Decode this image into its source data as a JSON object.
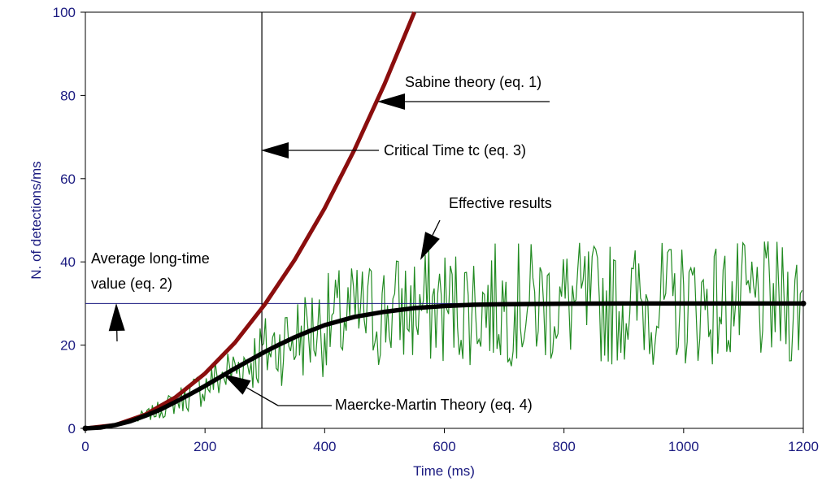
{
  "chart_data": {
    "type": "line",
    "title": "",
    "xlabel": "Time (ms)",
    "ylabel": "N. of detections/ms",
    "xlim": [
      0,
      1200
    ],
    "ylim": [
      0,
      100
    ],
    "xticks": [
      0,
      200,
      400,
      600,
      800,
      1000,
      1200
    ],
    "yticks": [
      0,
      20,
      40,
      60,
      80,
      100
    ],
    "grid": false,
    "legend": "none",
    "series": [
      {
        "color": "#8b0e0e",
        "x": [
          0,
          50,
          100,
          150,
          200,
          250,
          300,
          350,
          400,
          450,
          500,
          550
        ],
        "y": [
          0,
          0.8,
          3.3,
          7.4,
          13.2,
          20.6,
          29.8,
          40.5,
          52.9,
          67.0,
          82.7,
          100
        ]
      },
      {
        "color": "#000000",
        "x": [
          0,
          25,
          50,
          75,
          100,
          125,
          150,
          175,
          200,
          225,
          250,
          275,
          300,
          325,
          350,
          375,
          400,
          450,
          500,
          550,
          600,
          650,
          700,
          800,
          900,
          1000,
          1100,
          1200
        ],
        "y": [
          0,
          0.2,
          0.8,
          1.7,
          3.0,
          4.5,
          6.3,
          8.2,
          10.2,
          12.3,
          14.4,
          16.4,
          18.4,
          20.2,
          21.9,
          23.4,
          24.8,
          26.8,
          28.0,
          28.9,
          29.4,
          29.7,
          29.85,
          29.97,
          30,
          30,
          30,
          30
        ]
      },
      {
        "color": "#228b22",
        "x_start": 85,
        "x_end": 1200,
        "x_step": 3,
        "seed": 7
      },
      {
        "color": "#1a1a80",
        "x": [
          0,
          1200
        ],
        "y": [
          30,
          30
        ]
      }
    ],
    "critical_time_x": 295,
    "annotations": [
      {
        "text": "Sabine theory (eq. 1)"
      },
      {
        "text": "Critical Time tc (eq. 3)"
      },
      {
        "text": "Effective results"
      },
      {
        "text": "Average long-time"
      },
      {
        "text": "value (eq. 2)"
      },
      {
        "text": "Maercke-Martin Theory (eq. 4)"
      }
    ]
  }
}
